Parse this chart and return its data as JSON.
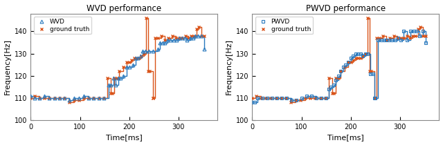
{
  "title1": "WVD performance",
  "title2": "PWVD performance",
  "xlabel": "Time[ms]",
  "ylabel": "Frequency[Hz]",
  "xlim": [
    0,
    380
  ],
  "ylim": [
    100,
    148
  ],
  "yticks": [
    100,
    110,
    120,
    130,
    140
  ],
  "xticks": [
    0,
    100,
    200,
    300
  ],
  "wvd_color": "#2878bd",
  "gt_color": "#d95319",
  "wvd_label": "WVD",
  "pwvd_label": "PWVD",
  "gt_label": "ground truth",
  "ground_truth_x": [
    0,
    8,
    18,
    28,
    38,
    48,
    58,
    68,
    78,
    88,
    98,
    108,
    118,
    128,
    138,
    148,
    155,
    162,
    165,
    170,
    175,
    180,
    188,
    195,
    200,
    205,
    210,
    215,
    220,
    225,
    230,
    235,
    238,
    242,
    248,
    249,
    252,
    258,
    265,
    272,
    280,
    288,
    295,
    302,
    308,
    315,
    320,
    326,
    332,
    337,
    342,
    347,
    352
  ],
  "ground_truth_y": [
    110,
    111,
    110,
    110,
    110,
    110,
    110,
    110,
    108,
    109,
    109,
    110,
    110,
    110,
    110,
    110,
    119,
    112,
    112,
    119,
    119,
    122,
    124,
    126,
    126,
    127,
    128,
    128,
    128,
    129,
    130,
    146,
    122,
    122,
    110,
    110,
    137,
    137,
    138,
    136,
    137,
    138,
    137,
    137,
    137,
    138,
    137,
    138,
    138,
    141,
    142,
    138,
    138
  ],
  "wvd_x": [
    0,
    8,
    18,
    28,
    38,
    48,
    58,
    68,
    78,
    88,
    98,
    108,
    118,
    128,
    138,
    148,
    158,
    163,
    168,
    173,
    178,
    183,
    188,
    195,
    200,
    208,
    213,
    218,
    223,
    228,
    233,
    240,
    248,
    258,
    263,
    268,
    273,
    278,
    283,
    290,
    296,
    302,
    308,
    313,
    318,
    325,
    330,
    335,
    340,
    347,
    352
  ],
  "wvd_y": [
    111,
    110,
    110,
    111,
    110,
    110,
    110,
    110,
    109,
    110,
    110,
    111,
    110,
    110,
    110,
    110,
    116,
    116,
    119,
    116,
    119,
    119,
    120,
    124,
    124,
    125,
    128,
    128,
    129,
    131,
    131,
    131,
    131,
    132,
    135,
    135,
    135,
    136,
    136,
    136,
    136,
    137,
    137,
    137,
    136,
    137,
    137,
    138,
    138,
    138,
    132
  ],
  "pwvd_x": [
    0,
    5,
    10,
    20,
    30,
    40,
    50,
    60,
    70,
    80,
    90,
    100,
    110,
    120,
    130,
    140,
    150,
    155,
    160,
    165,
    170,
    175,
    180,
    185,
    190,
    195,
    200,
    205,
    210,
    215,
    220,
    225,
    230,
    235,
    240,
    245,
    248,
    250,
    255,
    262,
    268,
    272,
    278,
    283,
    290,
    296,
    302,
    308,
    315,
    322,
    328,
    335,
    340,
    347,
    352
  ],
  "pwvd_y": [
    108,
    108,
    110,
    110,
    110,
    110,
    110,
    110,
    110,
    109,
    109,
    110,
    111,
    111,
    110,
    110,
    110,
    114,
    115,
    116,
    118,
    120,
    122,
    124,
    125,
    126,
    128,
    129,
    130,
    130,
    130,
    129,
    130,
    130,
    121,
    121,
    110,
    110,
    136,
    136,
    136,
    136,
    136,
    136,
    136,
    137,
    136,
    140,
    136,
    140,
    140,
    140,
    138,
    140,
    135
  ]
}
